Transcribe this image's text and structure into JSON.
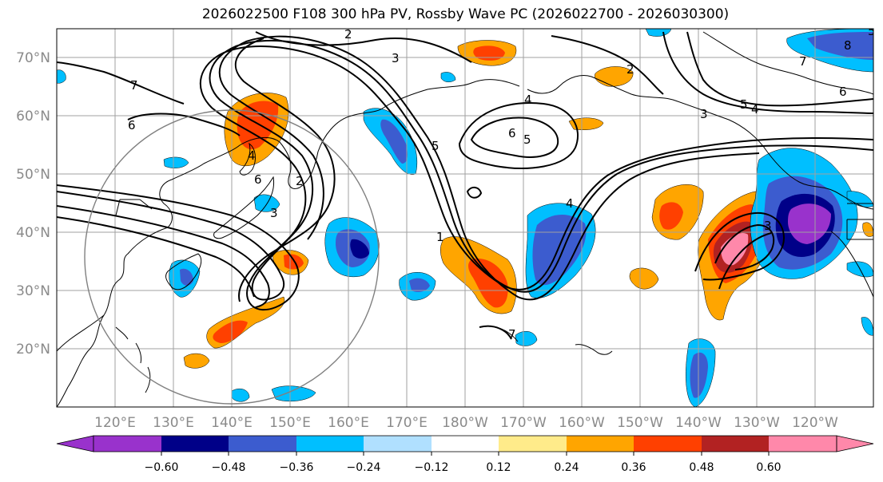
{
  "title": "2026022500 F108 300 hPa PV, Rossby Wave PC (2026022700 - 2026030300)",
  "map": {
    "projection": "equirectangular",
    "lon_range": [
      110,
      250
    ],
    "lat_range": [
      10,
      75
    ]
  },
  "lat_labels": [
    "20°N",
    "30°N",
    "40°N",
    "50°N",
    "60°N",
    "70°N"
  ],
  "lon_labels": [
    "120°E",
    "130°E",
    "140°E",
    "150°E",
    "160°E",
    "170°E",
    "180°W",
    "170°W",
    "160°W",
    "150°W",
    "140°W",
    "130°W",
    "120°W"
  ],
  "contour_labels": [
    "2",
    "3",
    "4",
    "5",
    "6",
    "7",
    "8",
    "2",
    "3",
    "4",
    "5",
    "6",
    "7",
    "6",
    "5",
    "4",
    "3",
    "2",
    "1",
    "6",
    "7",
    "5",
    "4",
    "3"
  ],
  "colorbar": {
    "ticks": [
      "−0.60",
      "−0.48",
      "−0.36",
      "−0.24",
      "−0.12",
      "0.12",
      "0.24",
      "0.36",
      "0.48",
      "0.60"
    ],
    "colors": [
      "#9932cc",
      "#000088",
      "#3c5ccf",
      "#00bfff",
      "#b0e0ff",
      "#ffffff",
      "#ffeb8a",
      "#ffa500",
      "#ff4000",
      "#b22222",
      "#ff88aa"
    ]
  },
  "colors": {
    "grid": "#a0a0a0",
    "coast": "#000000",
    "contour": "#000000",
    "circle": "#808080"
  }
}
